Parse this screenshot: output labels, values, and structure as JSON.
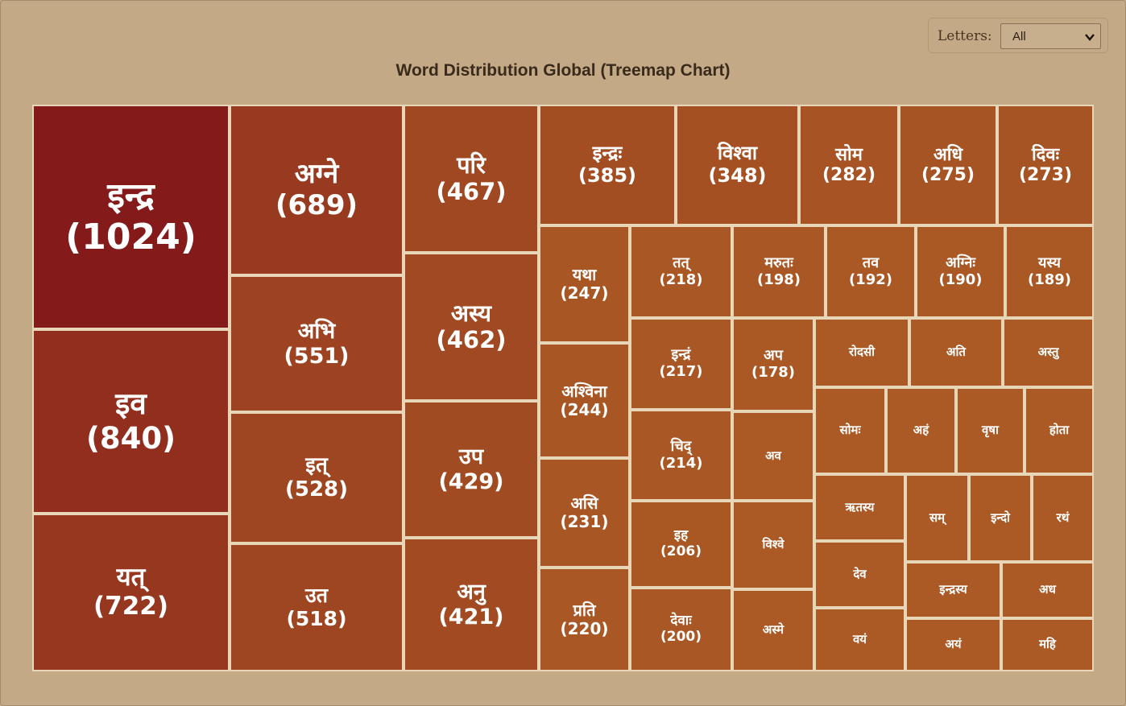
{
  "controls": {
    "letters_label": "Letters:",
    "letters_value": "All",
    "letters_icon": "chevron-down-icon"
  },
  "colors": {
    "dark": "#851a1a",
    "light": "#ab5b25",
    "border": "#e8d6b8",
    "background": "#c3a986"
  },
  "chart_data": {
    "type": "treemap",
    "title": "Word Distribution Global (Treemap Chart)",
    "items": [
      {
        "label": "इन्द्र",
        "value": 1024
      },
      {
        "label": "इव",
        "value": 840
      },
      {
        "label": "यत्",
        "value": 722
      },
      {
        "label": "अग्ने",
        "value": 689
      },
      {
        "label": "अभि",
        "value": 551
      },
      {
        "label": "इत्",
        "value": 528
      },
      {
        "label": "उत",
        "value": 518
      },
      {
        "label": "परि",
        "value": 467
      },
      {
        "label": "अस्य",
        "value": 462
      },
      {
        "label": "उप",
        "value": 429
      },
      {
        "label": "अनु",
        "value": 421
      },
      {
        "label": "इन्द्रः",
        "value": 385
      },
      {
        "label": "विश्वा",
        "value": 348
      },
      {
        "label": "सोम",
        "value": 282
      },
      {
        "label": "अधि",
        "value": 275
      },
      {
        "label": "दिवः",
        "value": 273
      },
      {
        "label": "यथा",
        "value": 247
      },
      {
        "label": "अश्विना",
        "value": 244
      },
      {
        "label": "असि",
        "value": 231
      },
      {
        "label": "प्रति",
        "value": 220
      },
      {
        "label": "तत्",
        "value": 218
      },
      {
        "label": "इन्द्रं",
        "value": 217
      },
      {
        "label": "चिद्",
        "value": 214
      },
      {
        "label": "इह",
        "value": 206
      },
      {
        "label": "देवाः",
        "value": 200
      },
      {
        "label": "मरुतः",
        "value": 198
      },
      {
        "label": "तव",
        "value": 192
      },
      {
        "label": "अग्निः",
        "value": 190
      },
      {
        "label": "यस्य",
        "value": 189
      },
      {
        "label": "अप",
        "value": 178
      },
      {
        "label": "अव",
        "value": null
      },
      {
        "label": "विश्वे",
        "value": null
      },
      {
        "label": "अस्मे",
        "value": null
      },
      {
        "label": "रोदसी",
        "value": null
      },
      {
        "label": "अति",
        "value": null
      },
      {
        "label": "अस्तु",
        "value": null
      },
      {
        "label": "सोमः",
        "value": null
      },
      {
        "label": "अहं",
        "value": null
      },
      {
        "label": "वृषा",
        "value": null
      },
      {
        "label": "होता",
        "value": null
      },
      {
        "label": "ऋतस्य",
        "value": null
      },
      {
        "label": "सम्",
        "value": null
      },
      {
        "label": "इन्दो",
        "value": null
      },
      {
        "label": "रथं",
        "value": null
      },
      {
        "label": "देव",
        "value": null
      },
      {
        "label": "इन्द्रस्य",
        "value": null
      },
      {
        "label": "अध",
        "value": null
      },
      {
        "label": "वयं",
        "value": null
      },
      {
        "label": "अयं",
        "value": null
      },
      {
        "label": "महि",
        "value": null
      }
    ]
  }
}
